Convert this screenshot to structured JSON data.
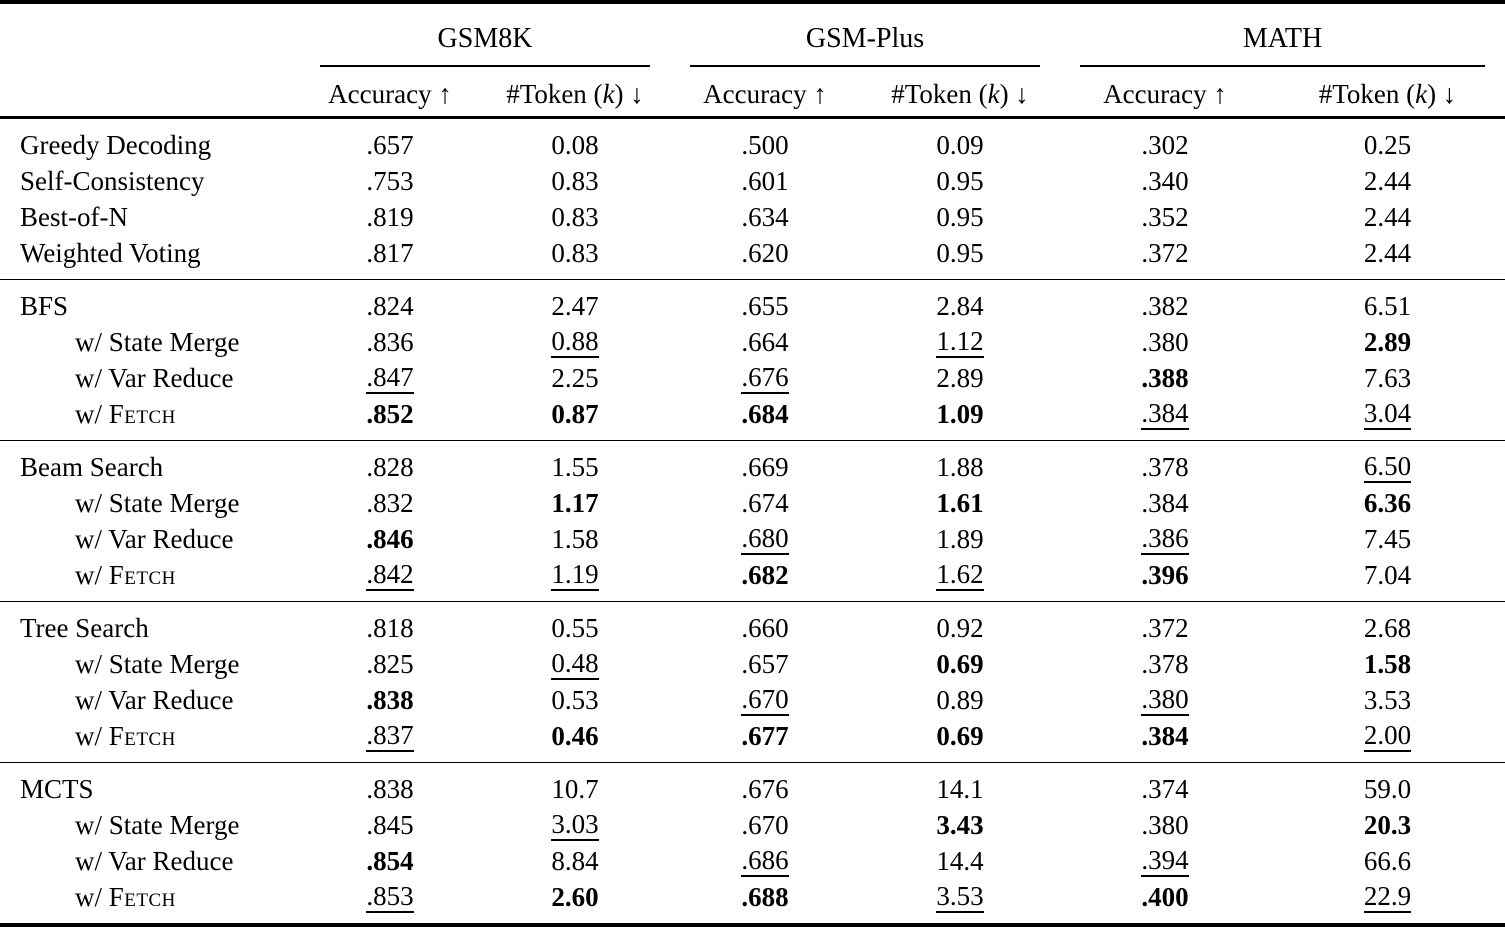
{
  "table": {
    "groups": [
      {
        "name": "GSM8K"
      },
      {
        "name": "GSM-Plus"
      },
      {
        "name": "MATH"
      }
    ],
    "subheaders": {
      "accuracy": "Accuracy ↑",
      "token_pre": "#Token (",
      "token_k": "k",
      "token_post": ") ↓"
    },
    "legend": {
      "bold_means": "best",
      "underline_means": "second-best"
    },
    "blocks": [
      {
        "rows": [
          {
            "label": "Greedy Decoding",
            "indent": false,
            "cells": [
              {
                "v": ".657",
                "s": ""
              },
              {
                "v": "0.08",
                "s": ""
              },
              {
                "v": ".500",
                "s": ""
              },
              {
                "v": "0.09",
                "s": ""
              },
              {
                "v": ".302",
                "s": ""
              },
              {
                "v": "0.25",
                "s": ""
              }
            ]
          },
          {
            "label": "Self-Consistency",
            "indent": false,
            "cells": [
              {
                "v": ".753",
                "s": ""
              },
              {
                "v": "0.83",
                "s": ""
              },
              {
                "v": ".601",
                "s": ""
              },
              {
                "v": "0.95",
                "s": ""
              },
              {
                "v": ".340",
                "s": ""
              },
              {
                "v": "2.44",
                "s": ""
              }
            ]
          },
          {
            "label": "Best-of-N",
            "indent": false,
            "cells": [
              {
                "v": ".819",
                "s": ""
              },
              {
                "v": "0.83",
                "s": ""
              },
              {
                "v": ".634",
                "s": ""
              },
              {
                "v": "0.95",
                "s": ""
              },
              {
                "v": ".352",
                "s": ""
              },
              {
                "v": "2.44",
                "s": ""
              }
            ]
          },
          {
            "label": "Weighted Voting",
            "indent": false,
            "cells": [
              {
                "v": ".817",
                "s": ""
              },
              {
                "v": "0.83",
                "s": ""
              },
              {
                "v": ".620",
                "s": ""
              },
              {
                "v": "0.95",
                "s": ""
              },
              {
                "v": ".372",
                "s": ""
              },
              {
                "v": "2.44",
                "s": ""
              }
            ]
          }
        ]
      },
      {
        "rows": [
          {
            "label": "BFS",
            "indent": false,
            "cells": [
              {
                "v": ".824",
                "s": ""
              },
              {
                "v": "2.47",
                "s": ""
              },
              {
                "v": ".655",
                "s": ""
              },
              {
                "v": "2.84",
                "s": ""
              },
              {
                "v": ".382",
                "s": ""
              },
              {
                "v": "6.51",
                "s": ""
              }
            ]
          },
          {
            "label": "w/ State Merge",
            "indent": true,
            "cells": [
              {
                "v": ".836",
                "s": ""
              },
              {
                "v": "0.88",
                "s": "u"
              },
              {
                "v": ".664",
                "s": ""
              },
              {
                "v": "1.12",
                "s": "u"
              },
              {
                "v": ".380",
                "s": ""
              },
              {
                "v": "2.89",
                "s": "b"
              }
            ]
          },
          {
            "label": "w/ Var Reduce",
            "indent": true,
            "cells": [
              {
                "v": ".847",
                "s": "u"
              },
              {
                "v": "2.25",
                "s": ""
              },
              {
                "v": ".676",
                "s": "u"
              },
              {
                "v": "2.89",
                "s": ""
              },
              {
                "v": ".388",
                "s": "b"
              },
              {
                "v": "7.63",
                "s": ""
              }
            ]
          },
          {
            "label_pre": "w/ ",
            "label_sc": "Fetch",
            "indent": true,
            "cells": [
              {
                "v": ".852",
                "s": "b"
              },
              {
                "v": "0.87",
                "s": "b"
              },
              {
                "v": ".684",
                "s": "b"
              },
              {
                "v": "1.09",
                "s": "b"
              },
              {
                "v": ".384",
                "s": "u"
              },
              {
                "v": "3.04",
                "s": "u"
              }
            ]
          }
        ]
      },
      {
        "rows": [
          {
            "label": "Beam Search",
            "indent": false,
            "cells": [
              {
                "v": ".828",
                "s": ""
              },
              {
                "v": "1.55",
                "s": ""
              },
              {
                "v": ".669",
                "s": ""
              },
              {
                "v": "1.88",
                "s": ""
              },
              {
                "v": ".378",
                "s": ""
              },
              {
                "v": "6.50",
                "s": "u"
              }
            ]
          },
          {
            "label": "w/ State Merge",
            "indent": true,
            "cells": [
              {
                "v": ".832",
                "s": ""
              },
              {
                "v": "1.17",
                "s": "b"
              },
              {
                "v": ".674",
                "s": ""
              },
              {
                "v": "1.61",
                "s": "b"
              },
              {
                "v": ".384",
                "s": ""
              },
              {
                "v": "6.36",
                "s": "b"
              }
            ]
          },
          {
            "label": "w/ Var Reduce",
            "indent": true,
            "cells": [
              {
                "v": ".846",
                "s": "b"
              },
              {
                "v": "1.58",
                "s": ""
              },
              {
                "v": ".680",
                "s": "u"
              },
              {
                "v": "1.89",
                "s": ""
              },
              {
                "v": ".386",
                "s": "u"
              },
              {
                "v": "7.45",
                "s": ""
              }
            ]
          },
          {
            "label_pre": "w/ ",
            "label_sc": "Fetch",
            "indent": true,
            "cells": [
              {
                "v": ".842",
                "s": "u"
              },
              {
                "v": "1.19",
                "s": "u"
              },
              {
                "v": ".682",
                "s": "b"
              },
              {
                "v": "1.62",
                "s": "u"
              },
              {
                "v": ".396",
                "s": "b"
              },
              {
                "v": "7.04",
                "s": ""
              }
            ]
          }
        ]
      },
      {
        "rows": [
          {
            "label": "Tree Search",
            "indent": false,
            "cells": [
              {
                "v": ".818",
                "s": ""
              },
              {
                "v": "0.55",
                "s": ""
              },
              {
                "v": ".660",
                "s": ""
              },
              {
                "v": "0.92",
                "s": ""
              },
              {
                "v": ".372",
                "s": ""
              },
              {
                "v": "2.68",
                "s": ""
              }
            ]
          },
          {
            "label": "w/ State Merge",
            "indent": true,
            "cells": [
              {
                "v": ".825",
                "s": ""
              },
              {
                "v": "0.48",
                "s": "u"
              },
              {
                "v": ".657",
                "s": ""
              },
              {
                "v": "0.69",
                "s": "b"
              },
              {
                "v": ".378",
                "s": ""
              },
              {
                "v": "1.58",
                "s": "b"
              }
            ]
          },
          {
            "label": "w/ Var Reduce",
            "indent": true,
            "cells": [
              {
                "v": ".838",
                "s": "b"
              },
              {
                "v": "0.53",
                "s": ""
              },
              {
                "v": ".670",
                "s": "u"
              },
              {
                "v": "0.89",
                "s": ""
              },
              {
                "v": ".380",
                "s": "u"
              },
              {
                "v": "3.53",
                "s": ""
              }
            ]
          },
          {
            "label_pre": "w/ ",
            "label_sc": "Fetch",
            "indent": true,
            "cells": [
              {
                "v": ".837",
                "s": "u"
              },
              {
                "v": "0.46",
                "s": "b"
              },
              {
                "v": ".677",
                "s": "b"
              },
              {
                "v": "0.69",
                "s": "b"
              },
              {
                "v": ".384",
                "s": "b"
              },
              {
                "v": "2.00",
                "s": "u"
              }
            ]
          }
        ]
      },
      {
        "rows": [
          {
            "label": "MCTS",
            "indent": false,
            "cells": [
              {
                "v": ".838",
                "s": ""
              },
              {
                "v": "10.7",
                "s": ""
              },
              {
                "v": ".676",
                "s": ""
              },
              {
                "v": "14.1",
                "s": ""
              },
              {
                "v": ".374",
                "s": ""
              },
              {
                "v": "59.0",
                "s": ""
              }
            ]
          },
          {
            "label": "w/ State Merge",
            "indent": true,
            "cells": [
              {
                "v": ".845",
                "s": ""
              },
              {
                "v": "3.03",
                "s": "u"
              },
              {
                "v": ".670",
                "s": ""
              },
              {
                "v": "3.43",
                "s": "b"
              },
              {
                "v": ".380",
                "s": ""
              },
              {
                "v": "20.3",
                "s": "b"
              }
            ]
          },
          {
            "label": "w/ Var Reduce",
            "indent": true,
            "cells": [
              {
                "v": ".854",
                "s": "b"
              },
              {
                "v": "8.84",
                "s": ""
              },
              {
                "v": ".686",
                "s": "u"
              },
              {
                "v": "14.4",
                "s": ""
              },
              {
                "v": ".394",
                "s": "u"
              },
              {
                "v": "66.6",
                "s": ""
              }
            ]
          },
          {
            "label_pre": "w/ ",
            "label_sc": "Fetch",
            "indent": true,
            "cells": [
              {
                "v": ".853",
                "s": "u"
              },
              {
                "v": "2.60",
                "s": "b"
              },
              {
                "v": ".688",
                "s": "b"
              },
              {
                "v": "3.53",
                "s": "u"
              },
              {
                "v": ".400",
                "s": "b"
              },
              {
                "v": "22.9",
                "s": "u"
              }
            ]
          }
        ]
      }
    ],
    "colors": {
      "text": "#000000",
      "background": "#ffffff",
      "rule": "#000000"
    }
  }
}
